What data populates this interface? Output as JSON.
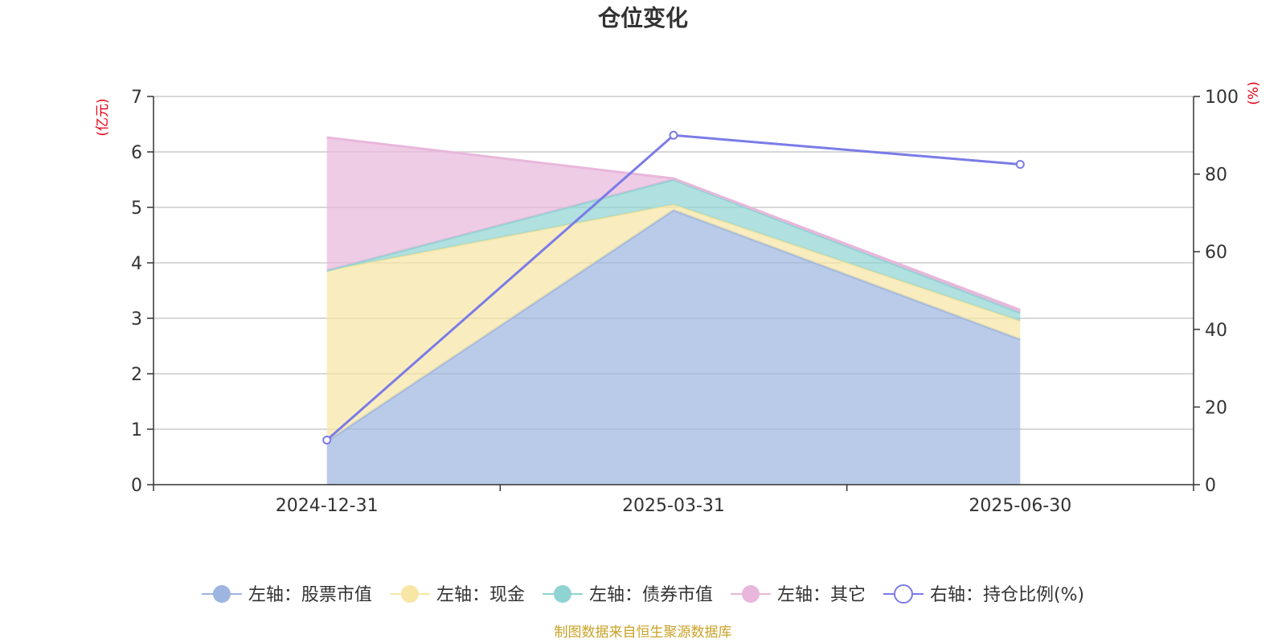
{
  "chart_data": {
    "type": "area",
    "title": "仓位变化",
    "categories": [
      "2024-12-31",
      "2025-03-31",
      "2025-06-30"
    ],
    "left_axis": {
      "unit": "(亿元)",
      "min": 0,
      "max": 7,
      "ticks": [
        "0",
        "1",
        "2",
        "3",
        "4",
        "5",
        "6",
        "7"
      ]
    },
    "right_axis": {
      "unit": "(%)",
      "min": 0,
      "max": 100,
      "ticks": [
        "0",
        "20",
        "40",
        "60",
        "80",
        "100"
      ]
    },
    "stacked_series": [
      {
        "name": "左轴：股票市值",
        "color": "#9db5e0",
        "values": [
          0.78,
          4.95,
          2.62
        ]
      },
      {
        "name": "左轴：现金",
        "color": "#f7e6a5",
        "values": [
          3.08,
          0.1,
          0.33
        ]
      },
      {
        "name": "左轴：债券市值",
        "color": "#8fd3d3",
        "values": [
          0.0,
          0.45,
          0.15
        ]
      },
      {
        "name": "左轴：其它",
        "color": "#e8b7db",
        "values": [
          2.4,
          0.02,
          0.05
        ]
      }
    ],
    "line_series": [
      {
        "name": "右轴：持仓比例(%)",
        "color": "#7b7be8",
        "values": [
          11.5,
          90.0,
          82.5
        ]
      }
    ],
    "legend_position": "bottom",
    "grid": true
  },
  "footer": {
    "source": "制图数据来自恒生聚源数据库"
  }
}
